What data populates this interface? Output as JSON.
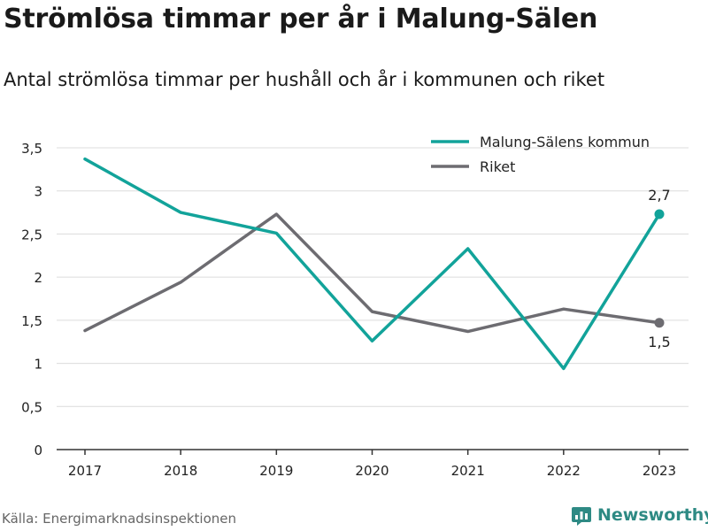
{
  "title": "Strömlösa timmar per år i Malung-Sälen",
  "subtitle": "Antal strömlösa timmar per hushåll och år i kommunen och riket",
  "source": "Källa: Energimarknadsinspektionen",
  "brand": {
    "label": "Newsworthy",
    "icon": "newsworthy-logo-icon",
    "color": "#2e8a84"
  },
  "chart_data": {
    "type": "line",
    "x": [
      "2017",
      "2018",
      "2019",
      "2020",
      "2021",
      "2022",
      "2023"
    ],
    "ylim": [
      0,
      3.5
    ],
    "yticks": [
      {
        "value": 0,
        "label": "0"
      },
      {
        "value": 0.5,
        "label": "0,5"
      },
      {
        "value": 1,
        "label": "1"
      },
      {
        "value": 1.5,
        "label": "1,5"
      },
      {
        "value": 2,
        "label": "2"
      },
      {
        "value": 2.5,
        "label": "2,5"
      },
      {
        "value": 3,
        "label": "3"
      },
      {
        "value": 3.5,
        "label": "3,5"
      }
    ],
    "grid": true,
    "legend_position": "top-right",
    "series": [
      {
        "name": "Malung-Sälens kommun",
        "color": "#12a39a",
        "values": [
          3.37,
          2.75,
          2.51,
          1.26,
          2.33,
          0.94,
          2.73
        ],
        "end_label": "2,7"
      },
      {
        "name": "Riket",
        "color": "#6d6c71",
        "values": [
          1.38,
          1.94,
          2.73,
          1.6,
          1.37,
          1.63,
          1.47
        ],
        "end_label": "1,5"
      }
    ]
  }
}
